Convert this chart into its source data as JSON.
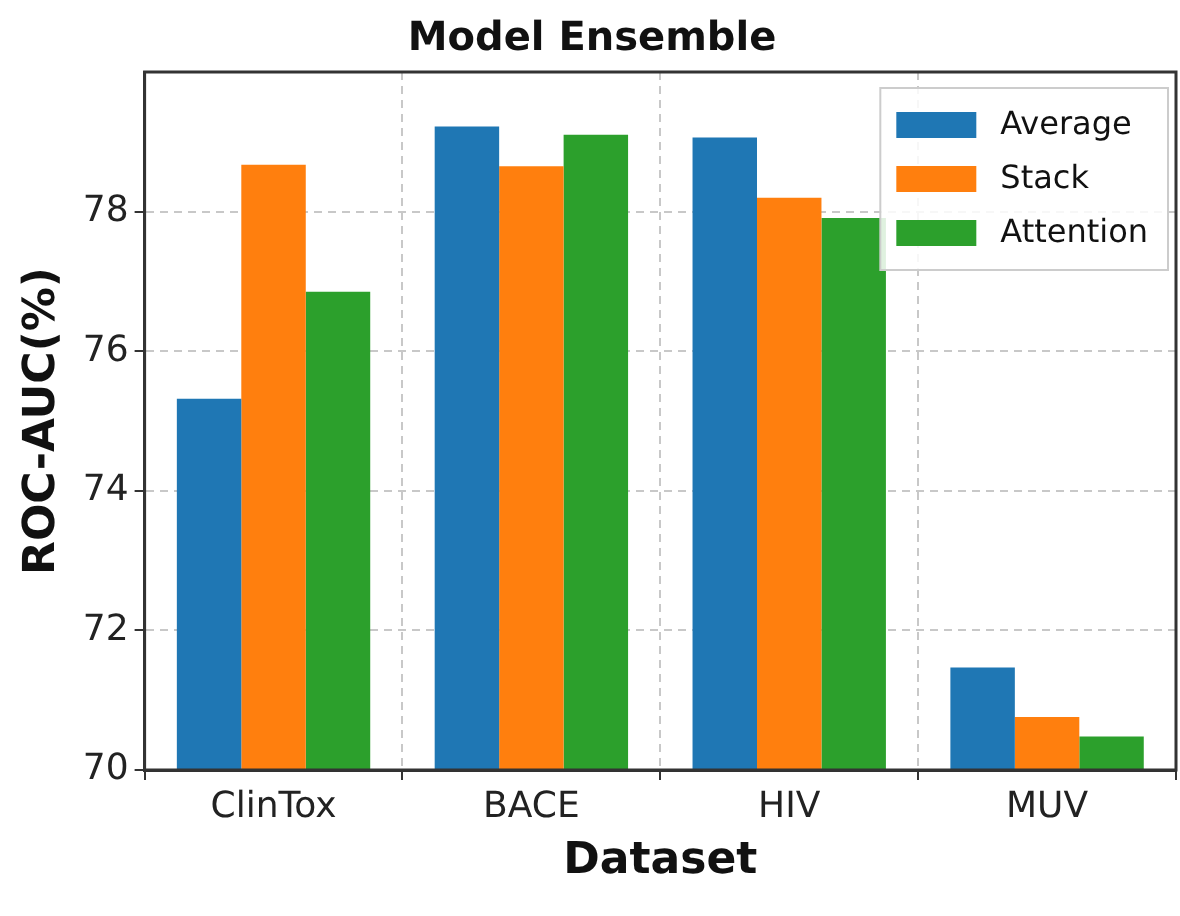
{
  "chart_data": {
    "type": "bar",
    "title": "Model Ensemble",
    "xlabel": "Dataset",
    "ylabel": "ROC-AUC(%)",
    "categories": [
      "ClinTox",
      "BACE",
      "HIV",
      "MUV"
    ],
    "series": [
      {
        "name": "Average",
        "color": "#1f77b4",
        "values": [
          75.32,
          79.22,
          79.06,
          71.47
        ]
      },
      {
        "name": "Stack",
        "color": "#ff7f0e",
        "values": [
          78.67,
          78.65,
          78.2,
          70.76
        ]
      },
      {
        "name": "Attention",
        "color": "#2ca02c",
        "values": [
          76.85,
          79.1,
          77.91,
          70.48
        ]
      }
    ],
    "ylim": [
      70,
      80
    ],
    "yticks": [
      70,
      72,
      74,
      76,
      78
    ],
    "grid": true,
    "legend": "top right"
  }
}
